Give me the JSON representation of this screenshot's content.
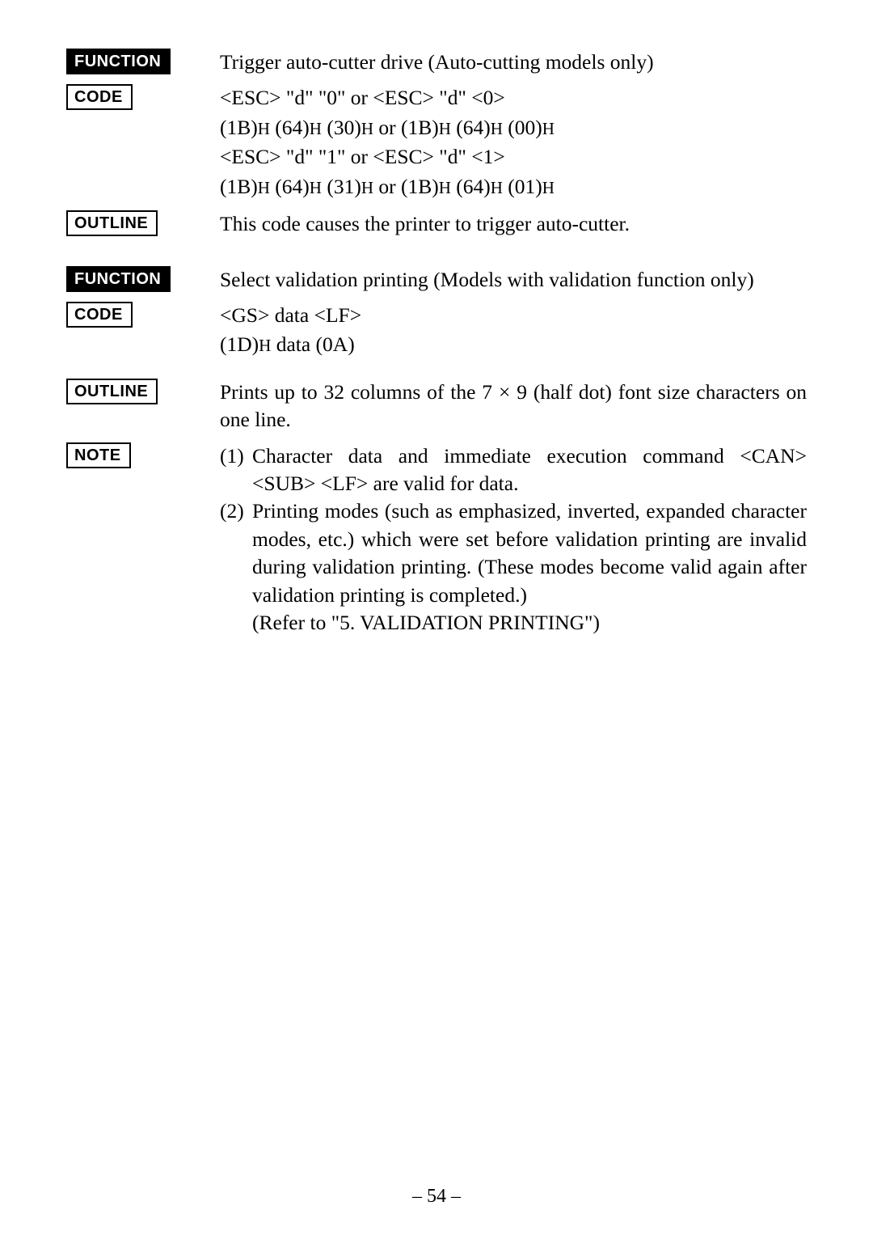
{
  "section1": {
    "function_label": "FUNCTION",
    "function_text": "Trigger auto-cutter drive (Auto-cutting models only)",
    "code_label": "CODE",
    "code_line1": "<ESC> \"d\" \"0\" or <ESC> \"d\" <0>",
    "code_line2_a": "(1B)",
    "code_line2_b": " (64)",
    "code_line2_c": " (30)",
    "code_line2_d": " or (1B)",
    "code_line2_e": " (64)",
    "code_line2_f": " (00)",
    "code_line3": "<ESC> \"d\" \"1\" or <ESC> \"d\" <1>",
    "code_line4_a": "(1B)",
    "code_line4_b": " (64)",
    "code_line4_c": " (31)",
    "code_line4_d": " or (1B)",
    "code_line4_e": " (64)",
    "code_line4_f": " (01)",
    "h": "H",
    "outline_label": "OUTLINE",
    "outline_text": "This code causes the printer  to trigger auto-cutter."
  },
  "section2": {
    "function_label": "FUNCTION",
    "function_text": "Select validation printing (Models with validation function only)",
    "code_label": "CODE",
    "code_line1": "<GS> data <LF>",
    "code_line2_a": "(1D)",
    "code_line2_b": " data (0A)",
    "h": "H",
    "outline_label": "OUTLINE",
    "outline_text": "Prints up to 32 columns of the 7 × 9 (half dot) font size characters on one line.",
    "note_label": "NOTE",
    "note1_num": "(1)",
    "note1_text": "Character data and immediate execution command <CAN> <SUB> <LF> are valid for data.",
    "note2_num": "(2)",
    "note2_text": "Printing modes (such as emphasized, inverted, expanded character modes, etc.) which were set before validation printing are invalid during validation printing. (These modes become valid again after validation printing is completed.)",
    "note2_refer": "(Refer to \"5. VALIDATION PRINTING\")"
  },
  "page_number": "– 54 –"
}
